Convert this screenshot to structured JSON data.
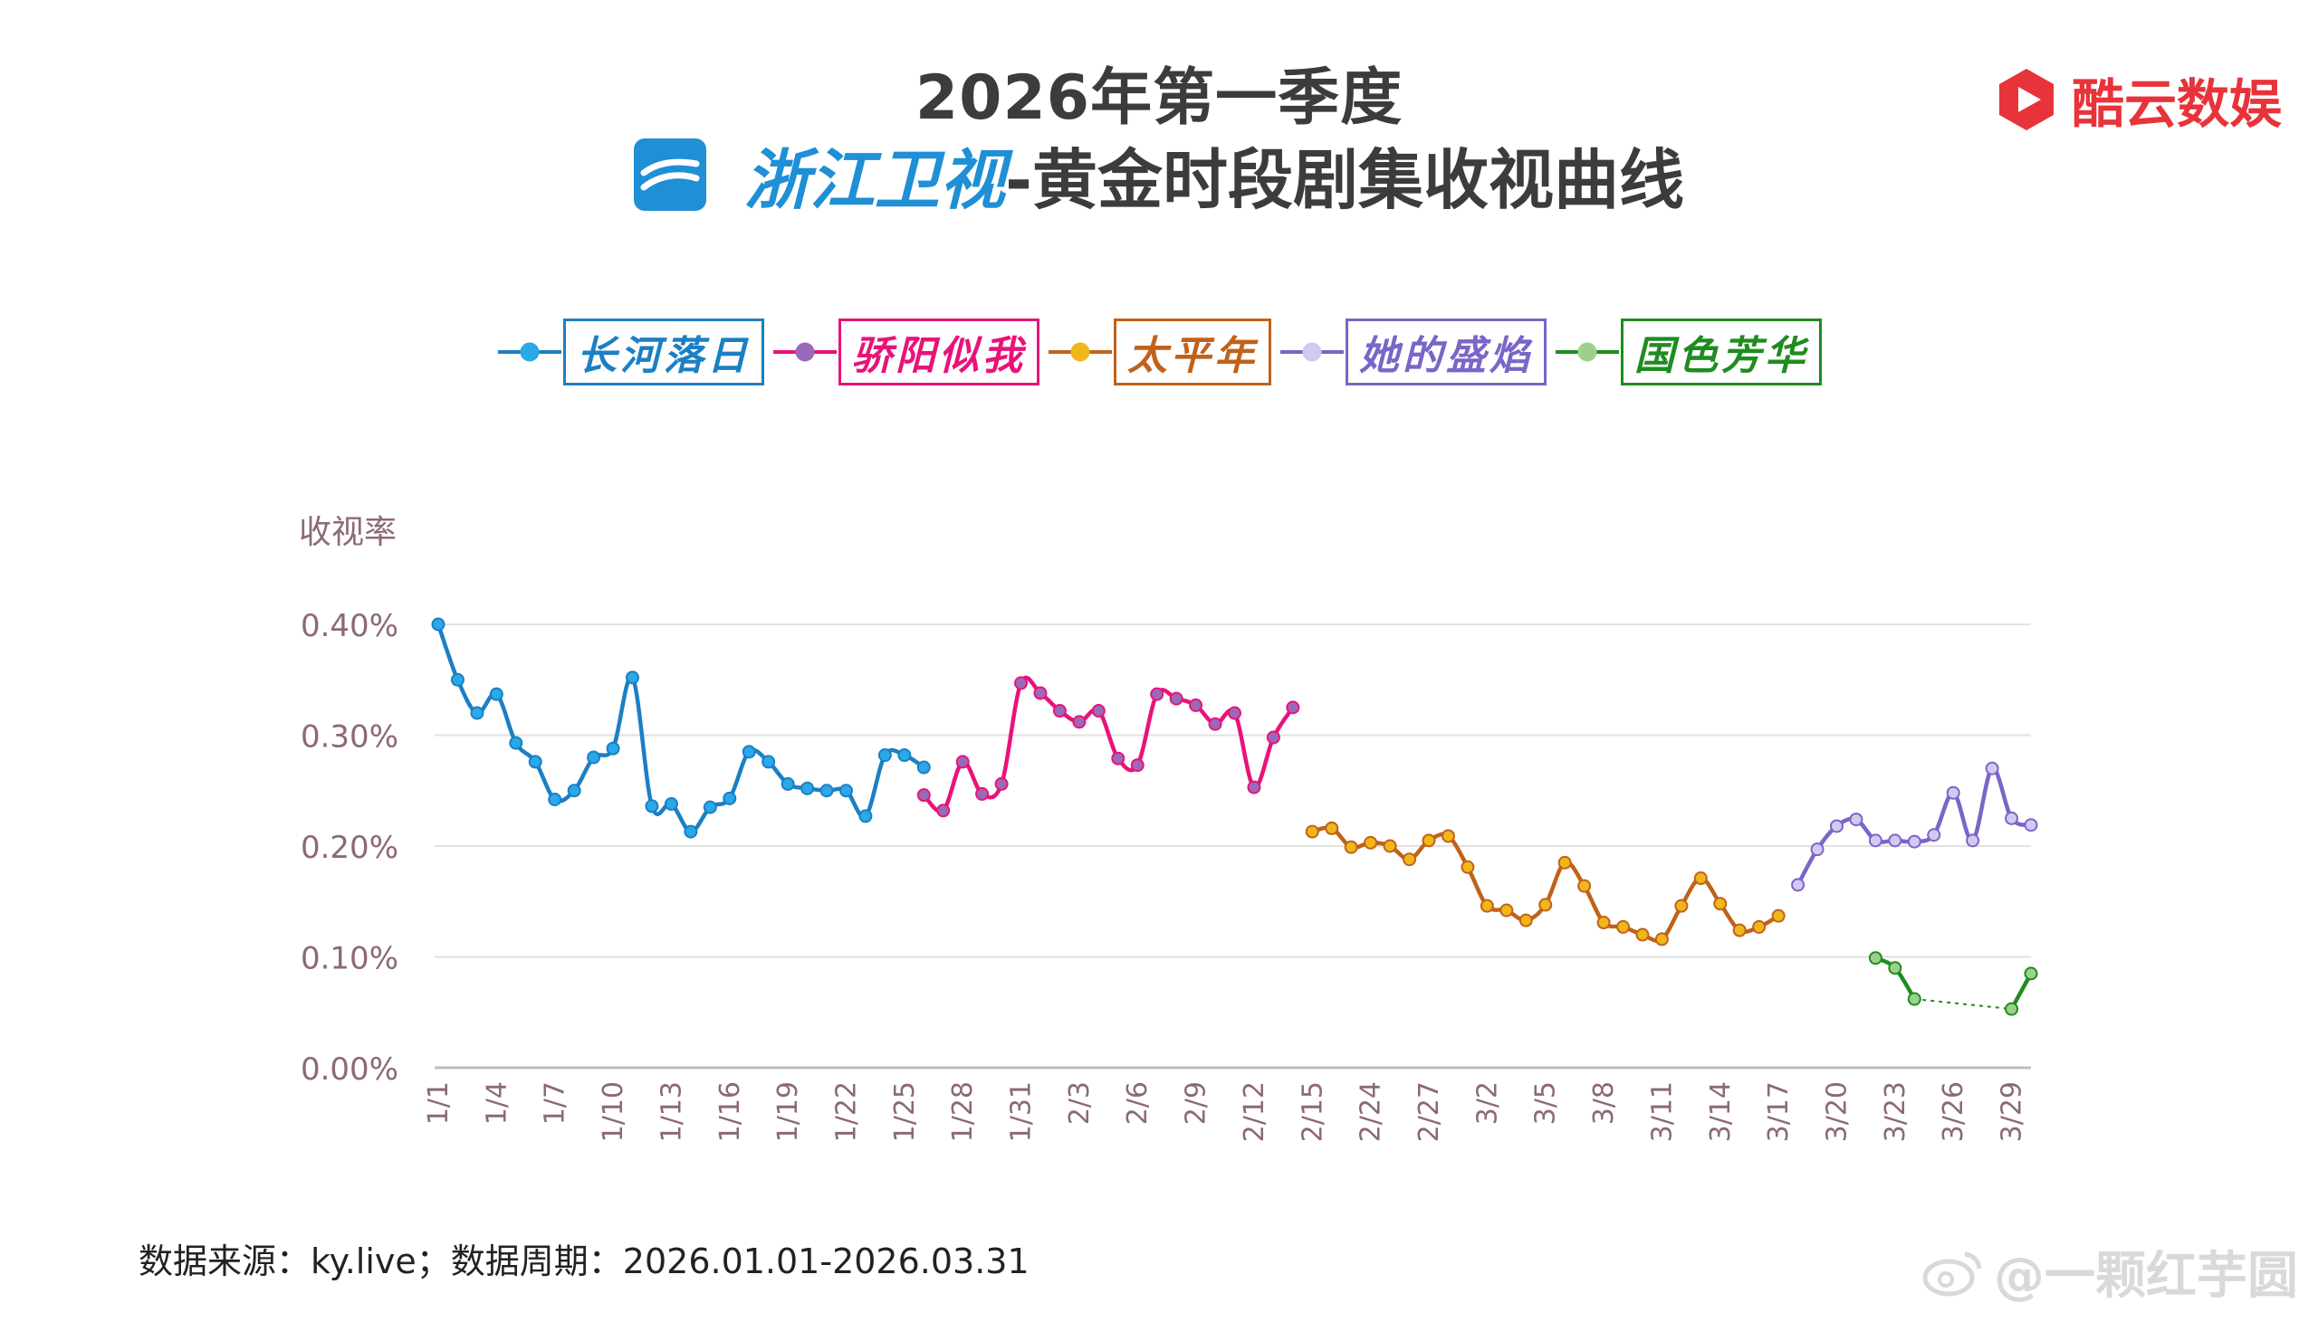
{
  "header": {
    "title_line1": "2026年第一季度",
    "channel": "浙江卫视",
    "title_rest": "-黄金时段剧集收视曲线"
  },
  "brand": {
    "name": "酷云数娱",
    "color": "#e8333a"
  },
  "footer": {
    "source": "数据来源：ky.live；数据周期：2026.01.01-2026.03.31"
  },
  "watermark": {
    "text": "@一颗红芋圆"
  },
  "chart_data": {
    "type": "line",
    "ylabel": "收视率",
    "ylim": [
      0,
      0.4
    ],
    "yticks": [
      "0.00%",
      "0.10%",
      "0.20%",
      "0.30%",
      "0.40%"
    ],
    "y_tick_values": [
      0,
      0.1,
      0.2,
      0.3,
      0.4
    ],
    "grid": true,
    "legend_position": "top",
    "x_tick_labels": [
      "1/1",
      "1/4",
      "1/7",
      "1/10",
      "1/13",
      "1/16",
      "1/19",
      "1/22",
      "1/25",
      "1/28",
      "1/31",
      "2/3",
      "2/6",
      "2/9",
      "2/12",
      "2/15",
      "2/24",
      "2/27",
      "3/2",
      "3/5",
      "3/8",
      "3/11",
      "3/14",
      "3/17",
      "3/20",
      "3/23",
      "3/26",
      "3/29"
    ],
    "series": [
      {
        "name": "长河落日",
        "color": "#1b7fc4",
        "marker": "#2aa8e8",
        "start": 0,
        "values": [
          0.4,
          0.35,
          0.32,
          0.337,
          0.293,
          0.276,
          0.242,
          0.25,
          0.28,
          0.288,
          0.352,
          0.236,
          0.238,
          0.213,
          0.235,
          0.243,
          0.285,
          0.276,
          0.256,
          0.252,
          0.25,
          0.25,
          0.227,
          0.282,
          0.282,
          0.271
        ]
      },
      {
        "name": "骄阳似我",
        "color": "#e8137a",
        "marker": "#9a6ab8",
        "start": 25,
        "values": [
          0.246,
          0.232,
          0.276,
          0.247,
          0.256,
          0.347,
          0.338,
          0.322,
          0.312,
          0.322,
          0.279,
          0.273,
          0.337,
          0.333,
          0.327,
          0.31,
          0.32,
          0.253,
          0.298,
          0.325
        ]
      },
      {
        "name": "太平年",
        "color": "#c0621a",
        "marker": "#f0b61a",
        "start": 45,
        "values": [
          0.213,
          0.216,
          0.199,
          0.203,
          0.2,
          0.188,
          0.205,
          0.209,
          0.181,
          0.146,
          0.142,
          0.133,
          0.147,
          0.185,
          0.164,
          0.131,
          0.127,
          0.12,
          0.116,
          0.146,
          0.171,
          0.148,
          0.124,
          0.127,
          0.137
        ]
      },
      {
        "name": "她的盛焰",
        "color": "#7a65c8",
        "marker": "#d5c8f0",
        "start": 70,
        "values": [
          0.165,
          0.197,
          0.218,
          0.224,
          0.205,
          0.205,
          0.204,
          0.21,
          0.248,
          0.205,
          0.27,
          0.225,
          0.219
        ]
      },
      {
        "name": "国色芳华",
        "color": "#1f8c1f",
        "marker": "#9bd18a",
        "start": 74,
        "values": [
          0.099,
          0.09,
          0.062,
          null,
          null,
          null,
          null,
          0.053,
          0.085
        ]
      }
    ]
  }
}
